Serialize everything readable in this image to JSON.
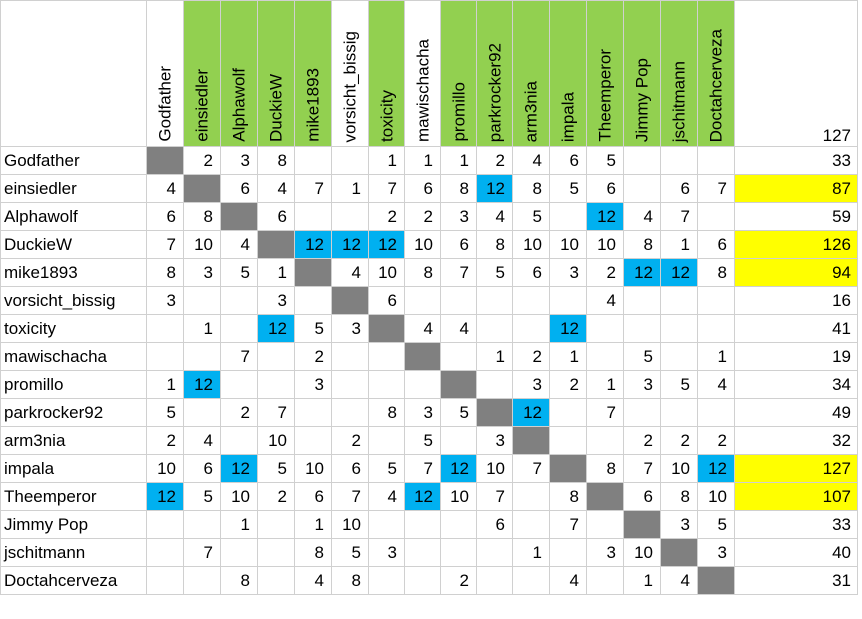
{
  "highlight_color": "#92d050",
  "diagonal_color": "#808080",
  "twelve_color": "#00b0f0",
  "top_total_color": "#ffff00",
  "grand_total": "127",
  "columns": [
    {
      "name": "Godfather",
      "hl": false
    },
    {
      "name": "einsiedler",
      "hl": true
    },
    {
      "name": "Alphawolf",
      "hl": true
    },
    {
      "name": "DuckieW",
      "hl": true
    },
    {
      "name": "mike1893",
      "hl": true
    },
    {
      "name": "vorsicht_bissig",
      "hl": false
    },
    {
      "name": "toxicity",
      "hl": true
    },
    {
      "name": "mawischacha",
      "hl": false
    },
    {
      "name": "promillo",
      "hl": true
    },
    {
      "name": "parkrocker92",
      "hl": true
    },
    {
      "name": "arm3nia",
      "hl": true
    },
    {
      "name": "impala",
      "hl": true
    },
    {
      "name": "Theemperor",
      "hl": true
    },
    {
      "name": "Jimmy Pop",
      "hl": true
    },
    {
      "name": "jschitmann",
      "hl": true
    },
    {
      "name": "Doctahcerveza",
      "hl": true
    }
  ],
  "rows": [
    {
      "name": "Godfather",
      "cells": [
        "",
        "2",
        "3",
        "8",
        "",
        "",
        "1",
        "1",
        "1",
        "2",
        "4",
        "6",
        "5",
        "",
        "",
        ""
      ],
      "total": "33",
      "top": false
    },
    {
      "name": "einsiedler",
      "cells": [
        "4",
        "",
        "6",
        "4",
        "7",
        "1",
        "7",
        "6",
        "8",
        "12",
        "8",
        "5",
        "6",
        "",
        "6",
        "7"
      ],
      "total": "87",
      "top": true
    },
    {
      "name": "Alphawolf",
      "cells": [
        "6",
        "8",
        "",
        "6",
        "",
        "",
        "2",
        "2",
        "3",
        "4",
        "5",
        "",
        "12",
        "4",
        "7",
        ""
      ],
      "total": "59",
      "top": false
    },
    {
      "name": "DuckieW",
      "cells": [
        "7",
        "10",
        "4",
        "",
        "12",
        "12",
        "12",
        "10",
        "6",
        "8",
        "10",
        "10",
        "10",
        "8",
        "1",
        "6"
      ],
      "total": "126",
      "top": true
    },
    {
      "name": "mike1893",
      "cells": [
        "8",
        "3",
        "5",
        "1",
        "",
        "4",
        "10",
        "8",
        "7",
        "5",
        "6",
        "3",
        "2",
        "12",
        "12",
        "8"
      ],
      "total": "94",
      "top": true
    },
    {
      "name": "vorsicht_bissig",
      "cells": [
        "3",
        "",
        "",
        "3",
        "",
        "",
        "6",
        "",
        "",
        "",
        "",
        "",
        "4",
        "",
        "",
        ""
      ],
      "total": "16",
      "top": false
    },
    {
      "name": "toxicity",
      "cells": [
        "",
        "1",
        "",
        "12",
        "5",
        "3",
        "",
        "4",
        "4",
        "",
        "",
        "12",
        "",
        "",
        "",
        ""
      ],
      "total": "41",
      "top": false
    },
    {
      "name": "mawischacha",
      "cells": [
        "",
        "",
        "7",
        "",
        "2",
        "",
        "",
        "",
        "",
        "1",
        "2",
        "1",
        "",
        "5",
        "",
        "1"
      ],
      "total": "19",
      "top": false
    },
    {
      "name": "promillo",
      "cells": [
        "1",
        "12",
        "",
        "",
        "3",
        "",
        "",
        "",
        "",
        "",
        "3",
        "2",
        "1",
        "3",
        "5",
        "4"
      ],
      "total": "34",
      "top": false
    },
    {
      "name": "parkrocker92",
      "cells": [
        "5",
        "",
        "2",
        "7",
        "",
        "",
        "8",
        "3",
        "5",
        "",
        "12",
        "",
        "7",
        "",
        "",
        ""
      ],
      "total": "49",
      "top": false
    },
    {
      "name": "arm3nia",
      "cells": [
        "2",
        "4",
        "",
        "10",
        "",
        "2",
        "",
        "5",
        "",
        "3",
        "",
        "",
        "",
        "2",
        "2",
        "2"
      ],
      "total": "32",
      "top": false
    },
    {
      "name": "impala",
      "cells": [
        "10",
        "6",
        "12",
        "5",
        "10",
        "6",
        "5",
        "7",
        "12",
        "10",
        "7",
        "",
        "8",
        "7",
        "10",
        "12"
      ],
      "total": "127",
      "top": true
    },
    {
      "name": "Theemperor",
      "cells": [
        "12",
        "5",
        "10",
        "2",
        "6",
        "7",
        "4",
        "12",
        "10",
        "7",
        "",
        "8",
        "",
        "6",
        "8",
        "10"
      ],
      "total": "107",
      "top": true
    },
    {
      "name": "Jimmy Pop",
      "cells": [
        "",
        "",
        "1",
        "",
        "1",
        "10",
        "",
        "",
        "",
        "6",
        "",
        "7",
        "",
        "",
        "3",
        "5"
      ],
      "total": "33",
      "top": false
    },
    {
      "name": "jschitmann",
      "cells": [
        "",
        "7",
        "",
        "",
        "8",
        "5",
        "3",
        "",
        "",
        "",
        "1",
        "",
        "3",
        "10",
        "",
        "3"
      ],
      "total": "40",
      "top": false
    },
    {
      "name": "Doctahcerveza",
      "cells": [
        "",
        "",
        "8",
        "",
        "4",
        "8",
        "",
        "",
        "2",
        "",
        "",
        "4",
        "",
        "1",
        "4",
        ""
      ],
      "total": "31",
      "top": false
    }
  ]
}
